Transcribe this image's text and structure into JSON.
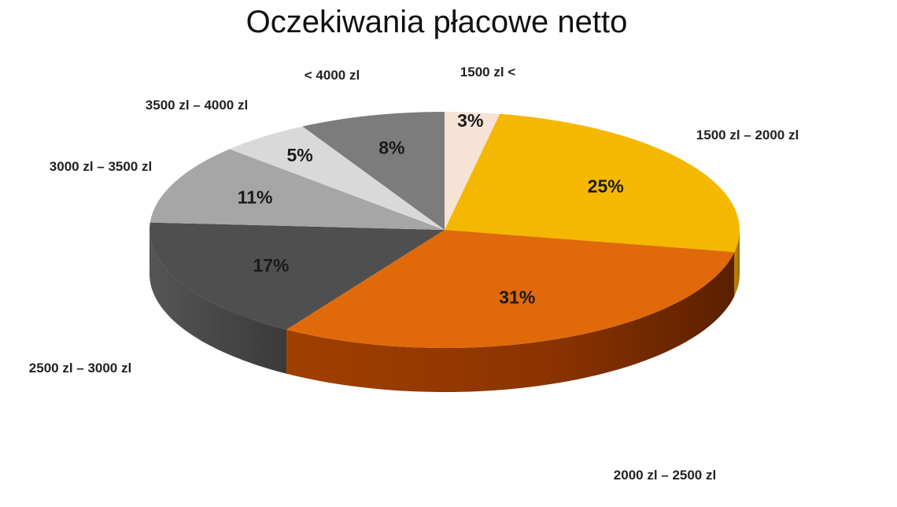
{
  "chart_data": {
    "type": "pie",
    "title": "Oczekiwania płacowe netto",
    "categories": [
      "1500 zl <",
      "1500 zl – 2000 zl",
      "2000 zl – 2500 zl",
      "2500 zl – 3000 zl",
      "3000 zl – 3500 zl",
      "3500 zl – 4000 zl",
      "< 4000 zl"
    ],
    "values": [
      3,
      25,
      31,
      17,
      11,
      5,
      8
    ],
    "value_labels": [
      "3%",
      "25%",
      "31%",
      "17%",
      "11%",
      "5%",
      "8%"
    ],
    "colors": [
      "#f6e3d6",
      "#f5b800",
      "#e06a0a",
      "#4f4f4f",
      "#a6a6a6",
      "#d9d9d9",
      "#7c7c7c"
    ],
    "style": "3d-tilted"
  }
}
